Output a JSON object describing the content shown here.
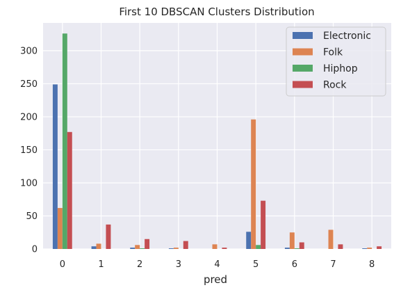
{
  "chart_data": {
    "type": "bar",
    "title": "First 10 DBSCAN Clusters Distribution",
    "xlabel": "pred",
    "ylabel": "",
    "categories": [
      "0",
      "1",
      "2",
      "3",
      "4",
      "5",
      "6",
      "7",
      "8"
    ],
    "yticks": [
      "0",
      "50",
      "100",
      "150",
      "200",
      "250",
      "300"
    ],
    "ylim": [
      0,
      342
    ],
    "grid": true,
    "legend_position": "top-right",
    "series": [
      {
        "name": "Electronic",
        "color": "#4c72b0",
        "values": [
          249,
          4,
          2,
          1,
          0,
          26,
          2,
          0,
          1
        ]
      },
      {
        "name": "Folk",
        "color": "#dd8452",
        "values": [
          62,
          8,
          6,
          2,
          7,
          196,
          25,
          29,
          2
        ]
      },
      {
        "name": "Hiphop",
        "color": "#55a868",
        "values": [
          326,
          0,
          1,
          0,
          0,
          6,
          1,
          0,
          0
        ]
      },
      {
        "name": "Rock",
        "color": "#c44e52",
        "values": [
          177,
          37,
          15,
          12,
          2,
          73,
          10,
          7,
          4
        ]
      }
    ]
  }
}
